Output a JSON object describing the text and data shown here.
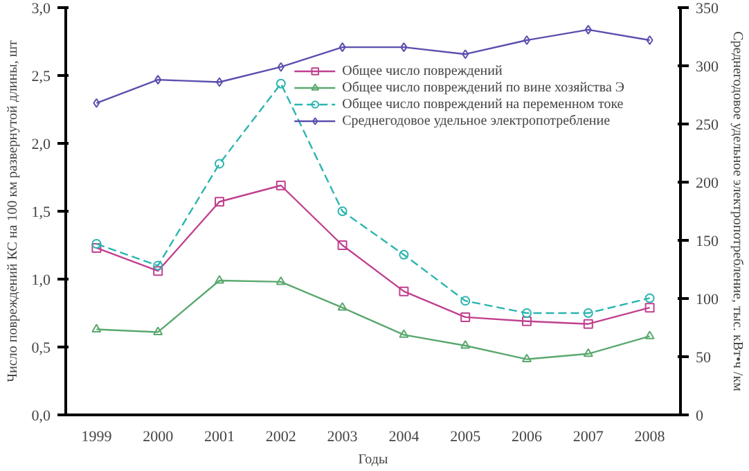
{
  "chart_data": {
    "type": "line",
    "ylabel": "Число повреждений КС на 100 км развернутой длины, шт",
    "y2label": "Среднегодовое удельное электропотребление, тыс. кВт•ч /км",
    "xlabel": "Годы",
    "categories": [
      "1999",
      "2000",
      "2001",
      "2002",
      "2003",
      "2004",
      "2005",
      "2006",
      "2007",
      "2008"
    ],
    "ylim": [
      0,
      3
    ],
    "yticks": [
      {
        "value": 0,
        "label": "0,0"
      },
      {
        "value": 0.5,
        "label": "0,5"
      },
      {
        "value": 1,
        "label": "1,0"
      },
      {
        "value": 1.5,
        "label": "1,5"
      },
      {
        "value": 2,
        "label": "2,0"
      },
      {
        "value": 2.5,
        "label": "2,5"
      },
      {
        "value": 3,
        "label": "3,0"
      }
    ],
    "y2lim": [
      0,
      350
    ],
    "y2ticks": [
      0,
      50,
      100,
      150,
      200,
      250,
      300,
      350
    ],
    "grid": false,
    "legend": "top right",
    "series": [
      {
        "name": "Общее число повреждений",
        "color": "#c0408f",
        "marker": "square",
        "line_style": "solid",
        "values": [
          1.23,
          1.06,
          1.57,
          1.69,
          1.25,
          0.91,
          0.72,
          0.69,
          0.67,
          0.79
        ]
      },
      {
        "name": "Общее число повреждений по вине хозяйства Э",
        "color": "#5aa86e",
        "marker": "triangle",
        "line_style": "solid",
        "values": [
          0.63,
          0.61,
          0.99,
          0.98,
          0.79,
          0.59,
          0.51,
          0.41,
          0.45,
          0.58
        ]
      },
      {
        "name": "Общее число повреждений на переменном токе",
        "color": "#2ab5b0",
        "marker": "circle",
        "line_style": "dashed",
        "values": [
          1.26,
          1.1,
          1.85,
          2.44,
          1.5,
          1.18,
          0.84,
          0.75,
          0.75,
          0.86
        ]
      },
      {
        "name": "Среднегодовое удельное электропотребление",
        "color": "#5a4fae",
        "marker": "diamond",
        "line_style": "solid",
        "axis": "y2",
        "values": [
          268,
          288,
          286,
          299,
          316,
          316,
          310,
          322,
          331,
          322
        ]
      }
    ]
  }
}
